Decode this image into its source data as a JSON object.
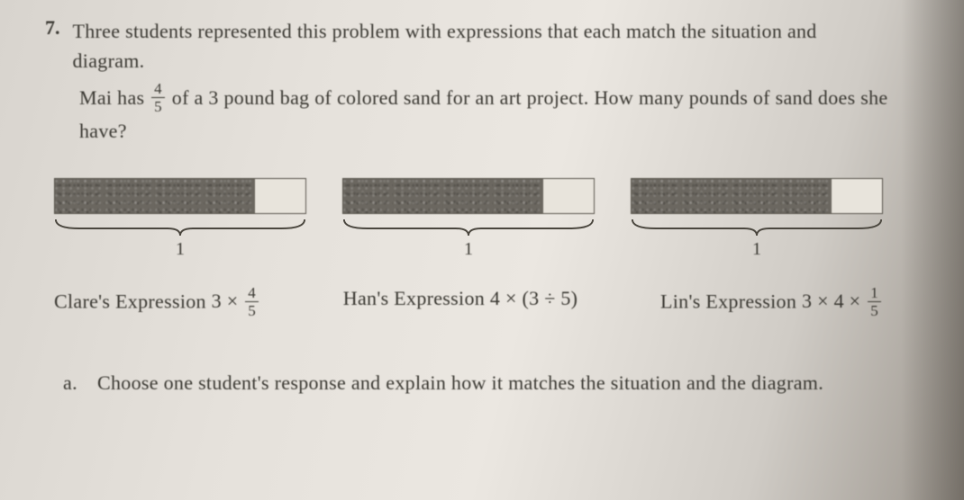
{
  "question": {
    "number": "7.",
    "intro": "Three students represented this problem with expressions that each match the situation and diagram.",
    "problem": "Mai has {FRAC_4_5} of a 3 pound bag of colored sand for an art project. How many pounds of sand does she have?"
  },
  "diagrams": [
    {
      "segments": 5,
      "shaded": 4,
      "label": "1"
    },
    {
      "segments": 5,
      "shaded": 4,
      "label": "1"
    },
    {
      "segments": 5,
      "shaded": 4,
      "label": "1"
    }
  ],
  "expressions": {
    "clare": {
      "owner": "Clare's Expression",
      "expr": "3 × {FRAC_4_5}"
    },
    "han": {
      "owner": "Han's Expression",
      "expr": "4 × (3 ÷ 5)"
    },
    "lin": {
      "owner": "Lin's Expression",
      "expr": "3 × 4 × {FRAC_1_5}"
    }
  },
  "subquestion": {
    "label": "a.",
    "text": "Choose one student's response and explain how it matches the situation and the diagram."
  },
  "fractions": {
    "FRAC_4_5": {
      "num": "4",
      "den": "5"
    },
    "FRAC_1_5": {
      "num": "1",
      "den": "5"
    }
  },
  "colors": {
    "text": "#3a3832",
    "shaded": "#6b6760",
    "empty": "#e8e4dc",
    "border": "#5a564e"
  }
}
